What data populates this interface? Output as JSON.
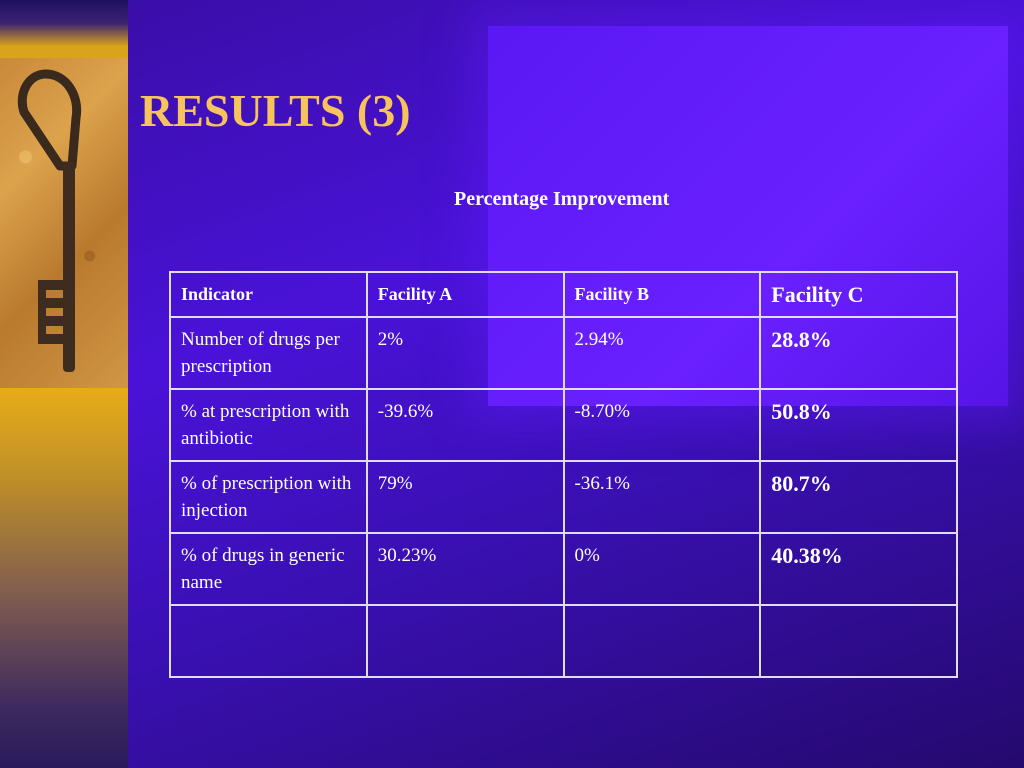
{
  "slide": {
    "title": "RESULTS (3)",
    "subtitle": "Percentage Improvement"
  },
  "table": {
    "headers": [
      "Indicator",
      "Facility A",
      "Facility B",
      "Facility C"
    ],
    "rows": [
      [
        "Number of drugs per prescription",
        "2%",
        "2.94%",
        "28.8%"
      ],
      [
        "% at prescription with antibiotic",
        "-39.6%",
        "-8.70%",
        "50.8%"
      ],
      [
        "% of prescription with injection",
        "79%",
        "-36.1%",
        "80.7%"
      ],
      [
        "% of drugs in generic name",
        "30.23%",
        "0%",
        "40.38%"
      ],
      [
        "",
        "",
        "",
        ""
      ]
    ]
  },
  "decoration": {
    "photo": "old-iron-key-photo",
    "colors": {
      "background": "#3a10b4",
      "title": "#f6c35c",
      "sidebar": "#e9ad19",
      "text": "#ffffff"
    }
  }
}
